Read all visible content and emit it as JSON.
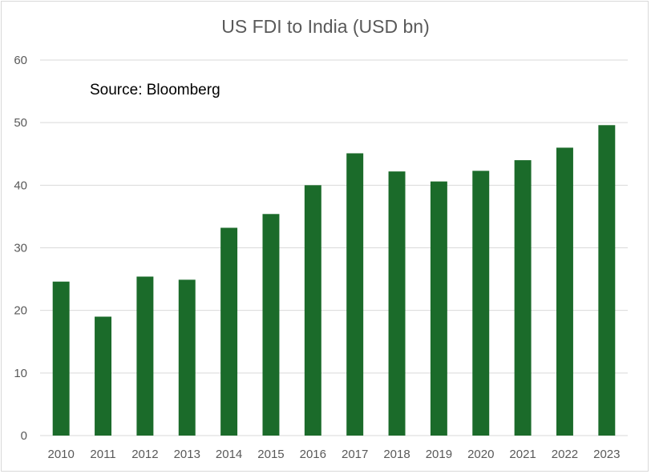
{
  "chart_data": {
    "type": "bar",
    "title": "US FDI to India (USD bn)",
    "annotation": "Source: Bloomberg",
    "categories": [
      "2010",
      "2011",
      "2012",
      "2013",
      "2014",
      "2015",
      "2016",
      "2017",
      "2018",
      "2019",
      "2020",
      "2021",
      "2022",
      "2023"
    ],
    "values": [
      24.6,
      19.0,
      25.4,
      24.9,
      33.2,
      35.4,
      40.0,
      45.1,
      42.2,
      40.6,
      42.3,
      44.0,
      46.0,
      49.6
    ],
    "ylim": [
      0,
      60
    ],
    "yticks": [
      "0",
      "10",
      "20",
      "30",
      "40",
      "50",
      "60"
    ],
    "grid": true,
    "legend": "none",
    "colors": {
      "bar": "#1b6b2a",
      "grid": "#d9d9d9",
      "text": "#595959"
    }
  }
}
